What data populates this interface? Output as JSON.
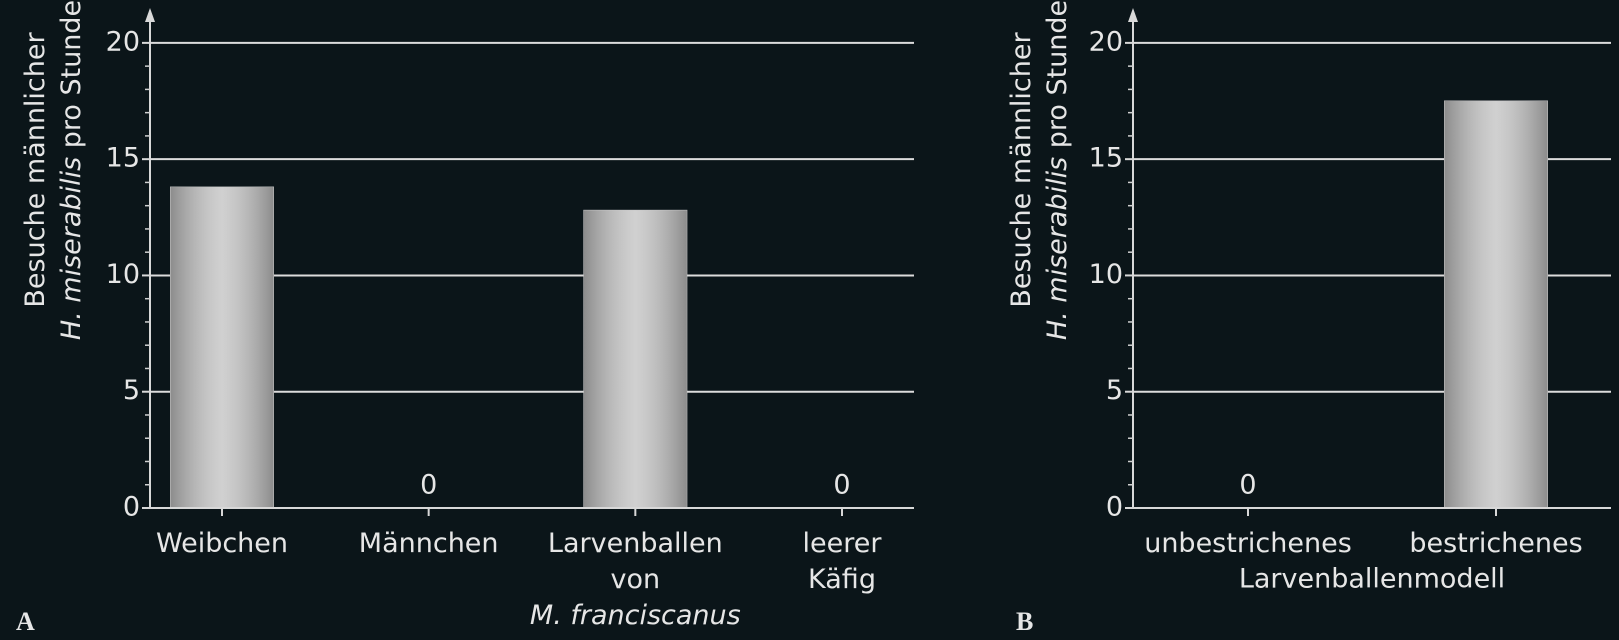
{
  "chart_data": [
    {
      "type": "bar",
      "panel": "A",
      "ylabel": [
        [
          "Besuche männlicher"
        ],
        [
          {
            "text": "H. miserabilis",
            "italic": true
          },
          " pro Stunde"
        ]
      ],
      "categories": [
        [
          "Weibchen"
        ],
        [
          "Männchen"
        ],
        [
          "Larvenballen",
          "von",
          {
            "text": "M. franciscanus",
            "italic": true
          }
        ],
        [
          "leerer",
          "Käfig"
        ]
      ],
      "values": [
        13.8,
        0,
        12.8,
        0
      ],
      "color": "#c8c8c8",
      "ylim": [
        0,
        21.5
      ],
      "yticks": [
        0,
        5,
        10,
        15,
        20
      ],
      "minor_yticks": [
        1,
        2,
        3,
        4,
        6,
        7,
        8,
        9,
        11,
        12,
        13,
        14,
        16,
        17,
        18,
        19
      ],
      "grid": true
    },
    {
      "type": "bar",
      "panel": "B",
      "ylabel": [
        [
          "Besuche männlicher"
        ],
        [
          {
            "text": "H. miserabilis",
            "italic": true
          },
          " pro Stunde"
        ]
      ],
      "categories": [
        [
          "unbestrichenes"
        ],
        [
          "bestrichenes"
        ]
      ],
      "xlabel": "Larvenballenmodell",
      "values": [
        0,
        17.5
      ],
      "color": "#c8c8c8",
      "ylim": [
        0,
        21.5
      ],
      "yticks": [
        0,
        5,
        10,
        15,
        20
      ],
      "minor_yticks": [
        1,
        2,
        3,
        4,
        6,
        7,
        8,
        9,
        11,
        12,
        13,
        14,
        16,
        17,
        18,
        19
      ],
      "grid": true
    }
  ]
}
